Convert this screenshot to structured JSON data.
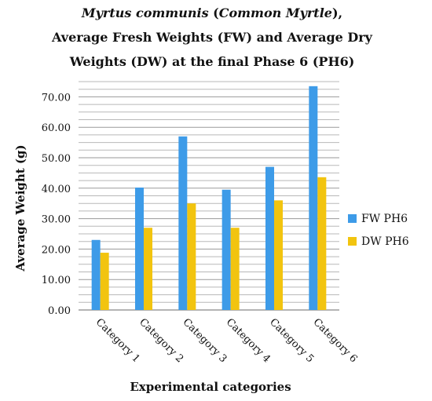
{
  "chart_data": {
    "type": "bar",
    "title_line1_species": "Myrtus communis",
    "title_line1_open": " (",
    "title_line1_common": "Common Myrtle",
    "title_line1_close": "),",
    "title_line2": "Average Fresh Weights (FW) and Average Dry",
    "title_line3": "Weights (DW) at the final Phase 6 (PH6)",
    "xlabel": "Experimental categories",
    "ylabel": "Average Weight (g)",
    "categories": [
      "Category 1",
      "Category 2",
      "Category 3",
      "Category 4",
      "Category 5",
      "Category 6"
    ],
    "series": [
      {
        "name": "FW PH6",
        "color": "#3d9be8",
        "values": [
          23.0,
          40.2,
          57.0,
          39.5,
          47.0,
          73.5
        ]
      },
      {
        "name": "DW PH6",
        "color": "#f2c40f",
        "values": [
          18.8,
          27.0,
          35.0,
          27.0,
          36.0,
          43.6
        ]
      }
    ],
    "ylim": [
      0,
      75
    ],
    "yticks": [
      "0.00",
      "10.00",
      "20.00",
      "30.00",
      "40.00",
      "50.00",
      "60.00",
      "70.00"
    ],
    "grid": true,
    "legend_position": "right"
  }
}
